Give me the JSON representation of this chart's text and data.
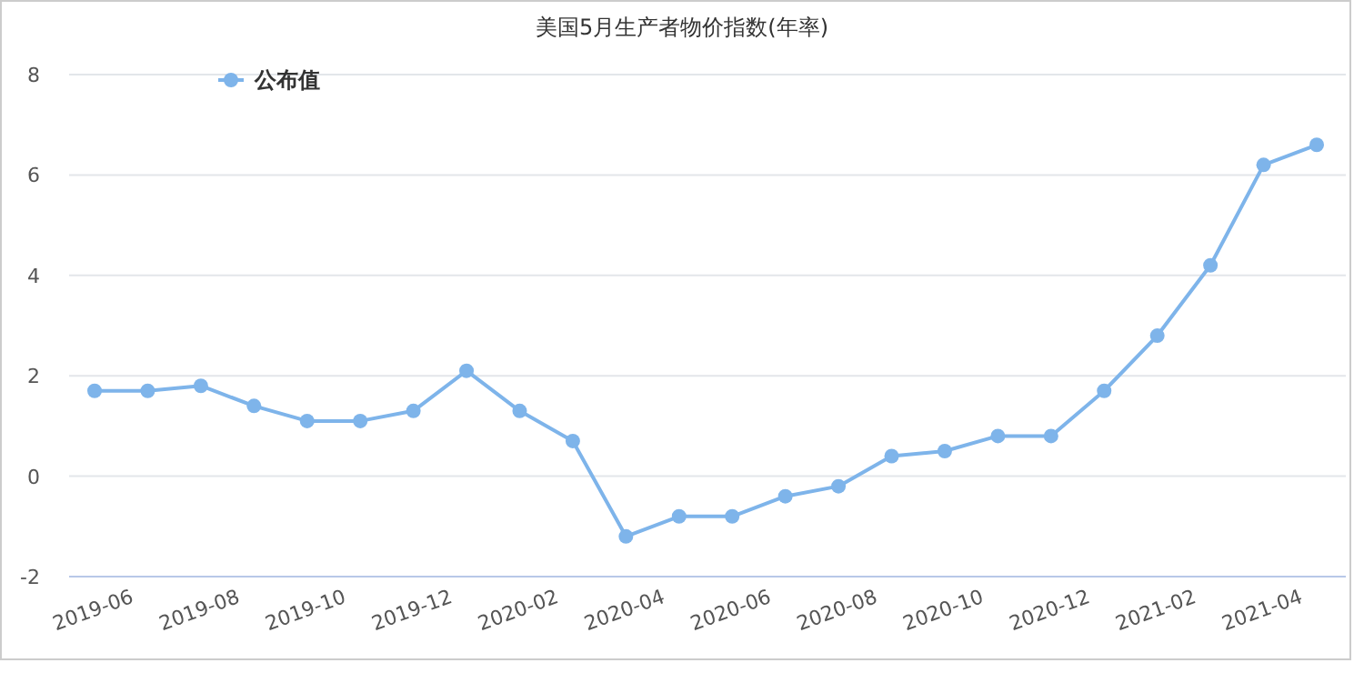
{
  "chart_data": {
    "type": "line",
    "title": "美国5月生产者物价指数(年率)",
    "categories": [
      "2019-06",
      null,
      "2019-08",
      null,
      "2019-10",
      null,
      "2019-12",
      null,
      "2020-02",
      null,
      "2020-04",
      null,
      "2020-06",
      null,
      "2020-08",
      null,
      "2020-10",
      null,
      "2020-12",
      null,
      "2021-02",
      null,
      "2021-04",
      null
    ],
    "series": [
      {
        "name": "公布值",
        "color": "#7eb4ea",
        "values": [
          1.7,
          1.7,
          1.8,
          1.4,
          1.1,
          1.1,
          1.3,
          2.1,
          1.3,
          0.7,
          -1.2,
          -0.8,
          -0.8,
          -0.4,
          -0.2,
          0.4,
          0.5,
          0.8,
          0.8,
          1.7,
          2.8,
          4.2,
          6.2,
          6.6
        ]
      }
    ],
    "ylim": [
      -2,
      8
    ],
    "yticks": [
      -2,
      0,
      2,
      4,
      6,
      8
    ],
    "grid": "y",
    "legend": "top left",
    "marker": "circle",
    "line_style": "solid"
  }
}
